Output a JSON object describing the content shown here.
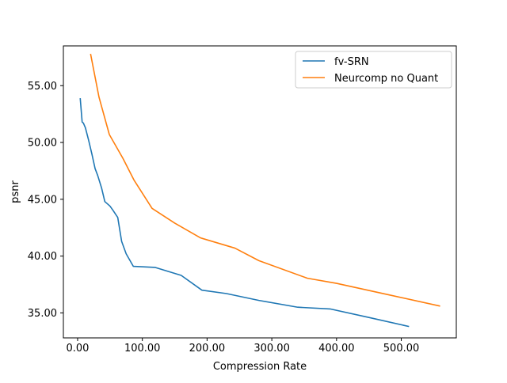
{
  "chart_data": {
    "type": "line",
    "title": "",
    "xlabel": "Compression Rate",
    "ylabel": "psnr",
    "xlim": [
      -22,
      585
    ],
    "ylim": [
      32.8,
      58.5
    ],
    "xticks": [
      0,
      100,
      200,
      300,
      400,
      500
    ],
    "xtick_labels": [
      "0.00",
      "100.00",
      "200.00",
      "300.00",
      "400.00",
      "500.00"
    ],
    "yticks": [
      35,
      40,
      45,
      50,
      55
    ],
    "ytick_labels": [
      "35.00",
      "40.00",
      "45.00",
      "50.00",
      "55.00"
    ],
    "grid": false,
    "legend": "upper right",
    "series": [
      {
        "name": "fv-SRN",
        "color": "#1f77b4",
        "x": [
          4,
          7,
          9,
          12,
          17,
          22,
          27,
          31,
          37,
          42,
          50,
          55,
          62,
          68,
          75,
          86,
          120,
          160,
          192,
          230,
          280,
          340,
          390,
          450,
          512
        ],
        "y": [
          53.9,
          51.8,
          51.7,
          51.3,
          50.2,
          49.0,
          47.7,
          47.1,
          46.0,
          44.8,
          44.4,
          44.0,
          43.4,
          41.3,
          40.2,
          39.1,
          39.0,
          38.3,
          37.0,
          36.7,
          36.1,
          35.5,
          35.35,
          34.6,
          33.8
        ]
      },
      {
        "name": "Neurcomp no Quant",
        "color": "#ff7f0e",
        "x": [
          20,
          33,
          49,
          70,
          87,
          115,
          150,
          190,
          243,
          280,
          355,
          400,
          480,
          560
        ],
        "y": [
          57.8,
          54.0,
          50.7,
          48.6,
          46.7,
          44.2,
          42.9,
          41.6,
          40.7,
          39.6,
          38.05,
          37.6,
          36.6,
          35.6
        ]
      }
    ]
  }
}
